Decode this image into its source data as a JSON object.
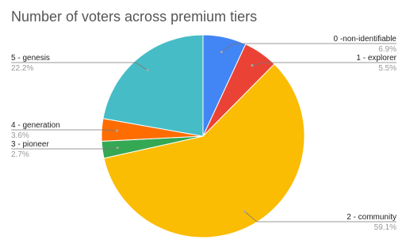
{
  "chart_data": {
    "type": "pie",
    "title": "Number of voters across premium tiers",
    "categories": [
      "0 -non-identifiable",
      "1 - explorer",
      "2 - community",
      "3 - pioneer",
      "4 - generation",
      "5 - genesis"
    ],
    "values": [
      6.9,
      5.5,
      59.1,
      2.7,
      3.6,
      22.2
    ],
    "value_labels": [
      "6.9%",
      "5.5%",
      "59.1%",
      "2.7%",
      "3.6%",
      "22.2%"
    ],
    "colors": [
      "#4285f4",
      "#ea4335",
      "#fbbc04",
      "#34a853",
      "#ff6d01",
      "#46bdc6"
    ]
  }
}
